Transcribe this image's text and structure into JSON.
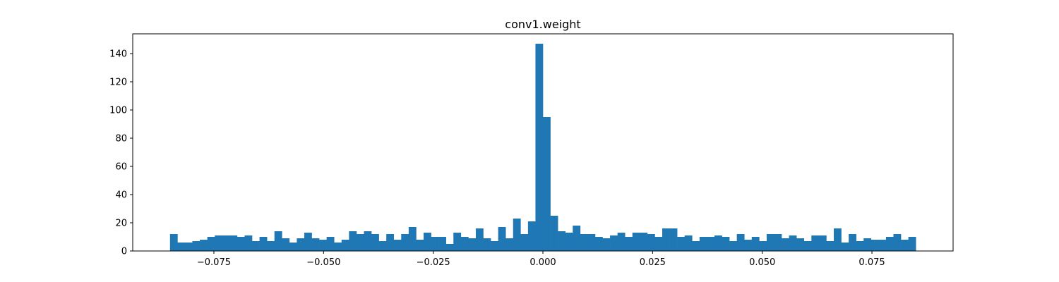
{
  "chart_data": {
    "type": "bar",
    "title": "conv1.weight",
    "xlabel": "",
    "ylabel": "",
    "xlim": [
      -0.0935,
      0.0935
    ],
    "ylim": [
      0,
      154
    ],
    "bar_color": "#1f77b4",
    "grid": false,
    "legend": "none",
    "bin_start": -0.085,
    "bin_end": 0.085,
    "counts": [
      12,
      6,
      6,
      7,
      8,
      10,
      11,
      11,
      11,
      10,
      11,
      7,
      10,
      7,
      14,
      9,
      6,
      9,
      13,
      9,
      8,
      10,
      6,
      8,
      14,
      12,
      14,
      12,
      7,
      12,
      8,
      12,
      17,
      8,
      13,
      10,
      10,
      5,
      13,
      10,
      9,
      16,
      9,
      7,
      17,
      9,
      23,
      12,
      21,
      147,
      95,
      25,
      14,
      13,
      18,
      12,
      12,
      10,
      9,
      11,
      13,
      10,
      13,
      13,
      12,
      10,
      16,
      16,
      10,
      11,
      7,
      10,
      10,
      11,
      10,
      7,
      12,
      8,
      10,
      7,
      12,
      12,
      9,
      11,
      9,
      7,
      11,
      11,
      7,
      16,
      6,
      12,
      7,
      9,
      8,
      8,
      10,
      12,
      8,
      10
    ],
    "x_ticks": [
      {
        "value": -0.075,
        "label": "−0.075"
      },
      {
        "value": -0.05,
        "label": "−0.050"
      },
      {
        "value": -0.025,
        "label": "−0.025"
      },
      {
        "value": 0.0,
        "label": "0.000"
      },
      {
        "value": 0.025,
        "label": "0.025"
      },
      {
        "value": 0.05,
        "label": "0.050"
      },
      {
        "value": 0.075,
        "label": "0.075"
      }
    ],
    "y_ticks": [
      {
        "value": 0,
        "label": "0"
      },
      {
        "value": 20,
        "label": "20"
      },
      {
        "value": 40,
        "label": "40"
      },
      {
        "value": 60,
        "label": "60"
      },
      {
        "value": 80,
        "label": "80"
      },
      {
        "value": 100,
        "label": "100"
      },
      {
        "value": 120,
        "label": "120"
      },
      {
        "value": 140,
        "label": "140"
      }
    ]
  }
}
